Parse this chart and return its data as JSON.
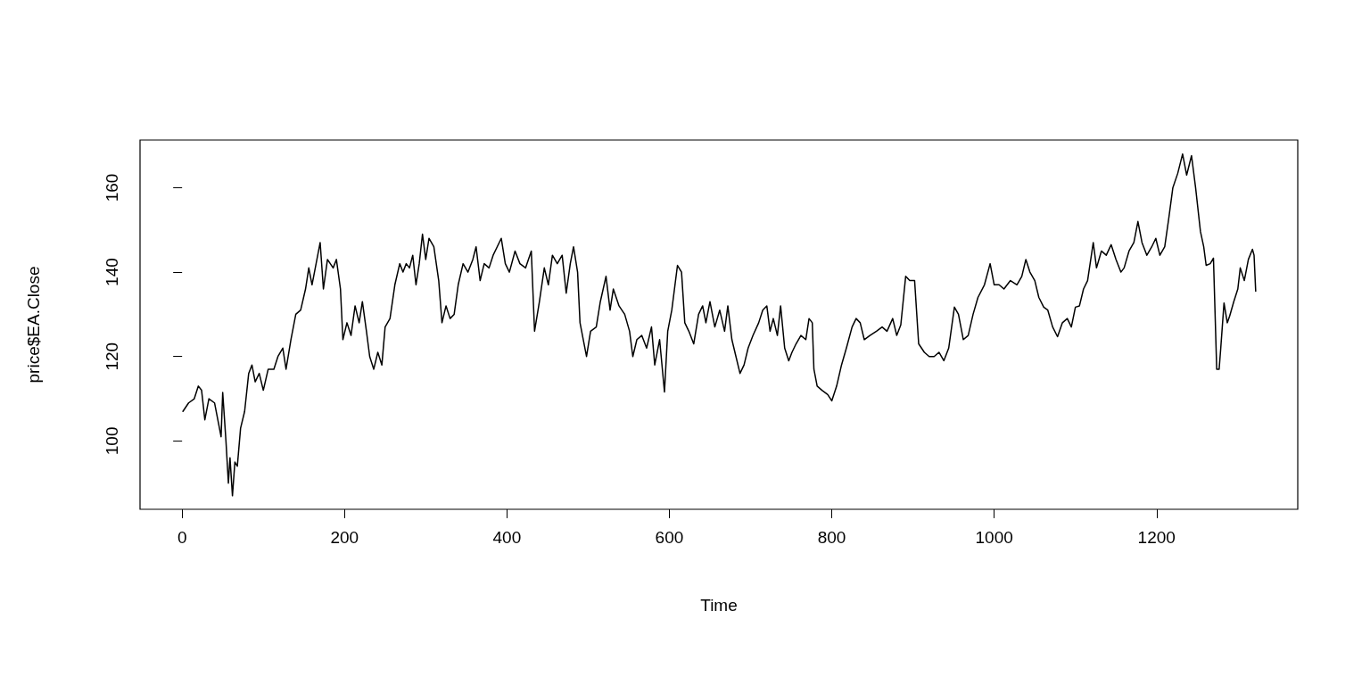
{
  "chart_data": {
    "type": "line",
    "xlabel": "Time",
    "ylabel": "price$EA.Close",
    "x": [
      1,
      8,
      15,
      20,
      24,
      28,
      33,
      40,
      45,
      48,
      50,
      54,
      57,
      59,
      62,
      65,
      68,
      72,
      77,
      82,
      86,
      90,
      95,
      100,
      106,
      113,
      118,
      124,
      128,
      134,
      140,
      146,
      152,
      156,
      160,
      165,
      170,
      174,
      179,
      186,
      190,
      195,
      198,
      203,
      208,
      213,
      218,
      222,
      227,
      231,
      236,
      241,
      246,
      250,
      256,
      262,
      268,
      272,
      276,
      280,
      284,
      288,
      292,
      296,
      300,
      304,
      310,
      316,
      320,
      325,
      330,
      335,
      340,
      346,
      352,
      358,
      362,
      367,
      372,
      378,
      383,
      388,
      393,
      398,
      403,
      410,
      416,
      423,
      430,
      434,
      440,
      446,
      451,
      456,
      462,
      468,
      473,
      478,
      482,
      487,
      490,
      494,
      498,
      503,
      510,
      515,
      522,
      527,
      531,
      538,
      545,
      551,
      555,
      560,
      566,
      572,
      578,
      582,
      588,
      594,
      598,
      603,
      610,
      615,
      619,
      624,
      630,
      636,
      641,
      645,
      650,
      656,
      662,
      668,
      672,
      677,
      682,
      687,
      692,
      697,
      703,
      710,
      715,
      720,
      724,
      728,
      733,
      737,
      742,
      747,
      751,
      756,
      762,
      768,
      772,
      776,
      778,
      782,
      788,
      795,
      800,
      806,
      812,
      818,
      825,
      830,
      835,
      840,
      847,
      855,
      862,
      868,
      875,
      880,
      885,
      891,
      896,
      902,
      907,
      914,
      920,
      926,
      932,
      938,
      944,
      951,
      956,
      962,
      968,
      974,
      980,
      988,
      995,
      1000,
      1006,
      1012,
      1020,
      1028,
      1034,
      1039,
      1044,
      1050,
      1055,
      1061,
      1066,
      1072,
      1078,
      1084,
      1090,
      1095,
      1100,
      1105,
      1110,
      1115,
      1122,
      1126,
      1132,
      1138,
      1144,
      1150,
      1156,
      1160,
      1166,
      1172,
      1177,
      1182,
      1188,
      1194,
      1199,
      1204,
      1210,
      1215,
      1220,
      1226,
      1232,
      1237,
      1243,
      1248,
      1254,
      1258,
      1261,
      1266,
      1270,
      1274,
      1277,
      1279,
      1283,
      1287,
      1290,
      1295,
      1300,
      1303,
      1308,
      1313,
      1318,
      1320,
      1322
    ],
    "series": [
      {
        "color": "#000000",
        "values": [
          107,
          109,
          110,
          113,
          112,
          105,
          110,
          109,
          104,
          101,
          111.5,
          100,
          90,
          96,
          87,
          95,
          94,
          103,
          107,
          116,
          118,
          114,
          116,
          112,
          117,
          117,
          120,
          122,
          117,
          124,
          130,
          131,
          136,
          141,
          137,
          142,
          147,
          136,
          143,
          141,
          143,
          136,
          124,
          128,
          125,
          132,
          128,
          133,
          126,
          120,
          117,
          121,
          118,
          127,
          129,
          137,
          142,
          140,
          142,
          141,
          144,
          137,
          142,
          149,
          143,
          148,
          146,
          138,
          128,
          132,
          129,
          130,
          137,
          142,
          140,
          143,
          146,
          138,
          142,
          141,
          144,
          146,
          148,
          142,
          140,
          145,
          142,
          141,
          145,
          126,
          133,
          141,
          137,
          144,
          142,
          144,
          135,
          142,
          146,
          140,
          128,
          124,
          120,
          126,
          127,
          133,
          139,
          131,
          136,
          132,
          130,
          126,
          120,
          124,
          125,
          122,
          127,
          118,
          124,
          111.6,
          126,
          131,
          141.6,
          140,
          128,
          126,
          123,
          130,
          132,
          128,
          133,
          127,
          131,
          126,
          132,
          124,
          120,
          116,
          118,
          122,
          125,
          128,
          131,
          132,
          126,
          129,
          125,
          132,
          122,
          119,
          121,
          123,
          125,
          124,
          129,
          128,
          117,
          113,
          112,
          111,
          109.5,
          113,
          118,
          122,
          127,
          129,
          128,
          124,
          125,
          126,
          127,
          126,
          129,
          125,
          127.5,
          139,
          138,
          138,
          123,
          121,
          120,
          120,
          121,
          119,
          122,
          131.7,
          130,
          124,
          125,
          130,
          134,
          137,
          142,
          137,
          137,
          136,
          138,
          137,
          139,
          143,
          140,
          138,
          134,
          131.7,
          131,
          127,
          124.7,
          128,
          129,
          127,
          131.7,
          132,
          136,
          138,
          147,
          141,
          145,
          144,
          146.5,
          143,
          140,
          141,
          145,
          147,
          152,
          147,
          144,
          146,
          148,
          144,
          146,
          152.8,
          160,
          163.4,
          168,
          163,
          167.6,
          160,
          149.6,
          146,
          141.6,
          142,
          143.3,
          117,
          117,
          122,
          132.7,
          128,
          129.6,
          133,
          136,
          141,
          138,
          143,
          145.4,
          144,
          135.5
        ]
      }
    ],
    "xlim": [
      -51.8,
      1373.8
    ],
    "xticks": [
      0,
      200,
      400,
      600,
      800,
      1000,
      1200
    ],
    "ylim": [
      83.8,
      171.3
    ],
    "yticks": [
      100,
      120,
      140,
      160
    ],
    "grid": false,
    "marker": "none",
    "line_style": "solid"
  }
}
